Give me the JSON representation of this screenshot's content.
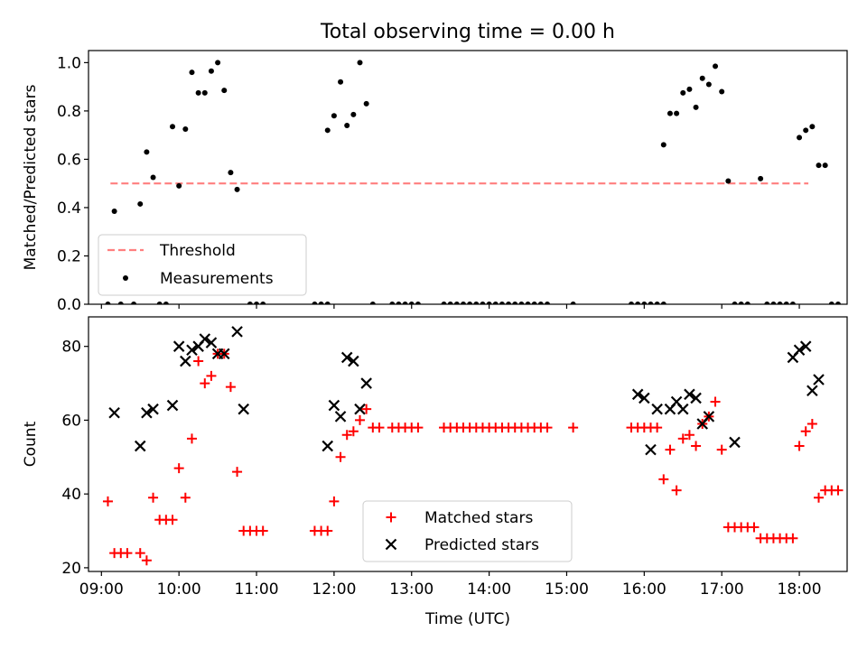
{
  "figure": {
    "title": "Total observing time = 0.00 h"
  },
  "chart_data": [
    {
      "type": "scatter",
      "ylabel": "Matched/Predicted stars",
      "xlim": [
        "08:50",
        "18:37"
      ],
      "ylim": [
        0,
        1.05
      ],
      "x_ticks": [
        "09:00",
        "10:00",
        "11:00",
        "12:00",
        "13:00",
        "14:00",
        "15:00",
        "16:00",
        "17:00",
        "18:00"
      ],
      "y_ticks": [
        "0.0",
        "0.2",
        "0.4",
        "0.6",
        "0.8",
        "1.0"
      ],
      "x_tick_labels_shown": false,
      "legend_position": "lower left",
      "threshold": {
        "name": "Threshold",
        "value": 0.5,
        "x_range": [
          "09:07",
          "18:07"
        ],
        "color": "#ff7f7f",
        "style": "dashed"
      },
      "series": [
        {
          "name": "Measurements",
          "color": "#000000",
          "marker": "dot",
          "points": [
            [
              "09:05",
              0.0
            ],
            [
              "09:10",
              0.385
            ],
            [
              "09:15",
              0.0
            ],
            [
              "09:25",
              0.0
            ],
            [
              "09:30",
              0.415
            ],
            [
              "09:35",
              0.63
            ],
            [
              "09:40",
              0.525
            ],
            [
              "09:45",
              0.0
            ],
            [
              "09:50",
              0.0
            ],
            [
              "09:55",
              0.735
            ],
            [
              "10:00",
              0.49
            ],
            [
              "10:05",
              0.725
            ],
            [
              "10:10",
              0.96
            ],
            [
              "10:15",
              0.875
            ],
            [
              "10:20",
              0.875
            ],
            [
              "10:25",
              0.965
            ],
            [
              "10:30",
              1.0
            ],
            [
              "10:35",
              0.885
            ],
            [
              "10:40",
              0.545
            ],
            [
              "10:45",
              0.475
            ],
            [
              "10:55",
              0.0
            ],
            [
              "11:00",
              0.0
            ],
            [
              "11:05",
              0.0
            ],
            [
              "11:45",
              0.0
            ],
            [
              "11:50",
              0.0
            ],
            [
              "11:55",
              0.0
            ],
            [
              "11:55",
              0.72
            ],
            [
              "12:00",
              0.78
            ],
            [
              "12:05",
              0.92
            ],
            [
              "12:10",
              0.74
            ],
            [
              "12:15",
              0.785
            ],
            [
              "12:20",
              1.0
            ],
            [
              "12:25",
              0.83
            ],
            [
              "12:30",
              0.0
            ],
            [
              "12:45",
              0.0
            ],
            [
              "12:50",
              0.0
            ],
            [
              "12:55",
              0.0
            ],
            [
              "13:00",
              0.0
            ],
            [
              "13:05",
              0.0
            ],
            [
              "13:25",
              0.0
            ],
            [
              "13:30",
              0.0
            ],
            [
              "13:35",
              0.0
            ],
            [
              "13:40",
              0.0
            ],
            [
              "13:45",
              0.0
            ],
            [
              "13:50",
              0.0
            ],
            [
              "13:55",
              0.0
            ],
            [
              "14:00",
              0.0
            ],
            [
              "14:05",
              0.0
            ],
            [
              "14:10",
              0.0
            ],
            [
              "14:15",
              0.0
            ],
            [
              "14:20",
              0.0
            ],
            [
              "14:25",
              0.0
            ],
            [
              "14:30",
              0.0
            ],
            [
              "14:35",
              0.0
            ],
            [
              "14:40",
              0.0
            ],
            [
              "14:45",
              0.0
            ],
            [
              "15:05",
              0.0
            ],
            [
              "15:50",
              0.0
            ],
            [
              "15:55",
              0.0
            ],
            [
              "16:00",
              0.0
            ],
            [
              "16:05",
              0.0
            ],
            [
              "16:10",
              0.0
            ],
            [
              "16:15",
              0.0
            ],
            [
              "16:15",
              0.66
            ],
            [
              "16:20",
              0.79
            ],
            [
              "16:25",
              0.79
            ],
            [
              "16:30",
              0.875
            ],
            [
              "16:35",
              0.89
            ],
            [
              "16:40",
              0.815
            ],
            [
              "16:45",
              0.935
            ],
            [
              "16:50",
              0.91
            ],
            [
              "16:55",
              0.985
            ],
            [
              "17:00",
              0.88
            ],
            [
              "17:05",
              0.51
            ],
            [
              "17:10",
              0.0
            ],
            [
              "17:15",
              0.0
            ],
            [
              "17:20",
              0.0
            ],
            [
              "17:30",
              0.52
            ],
            [
              "17:35",
              0.0
            ],
            [
              "17:40",
              0.0
            ],
            [
              "17:45",
              0.0
            ],
            [
              "17:50",
              0.0
            ],
            [
              "17:55",
              0.0
            ],
            [
              "18:00",
              0.69
            ],
            [
              "18:05",
              0.72
            ],
            [
              "18:10",
              0.735
            ],
            [
              "18:15",
              0.575
            ],
            [
              "18:20",
              0.575
            ],
            [
              "18:25",
              0.0
            ],
            [
              "18:30",
              0.0
            ]
          ]
        }
      ]
    },
    {
      "type": "scatter",
      "xlabel": "Time (UTC)",
      "ylabel": "Count",
      "xlim": [
        "08:50",
        "18:37"
      ],
      "ylim": [
        19,
        88
      ],
      "x_ticks": [
        "09:00",
        "10:00",
        "11:00",
        "12:00",
        "13:00",
        "14:00",
        "15:00",
        "16:00",
        "17:00",
        "18:00"
      ],
      "y_ticks": [
        "20",
        "40",
        "60",
        "80"
      ],
      "legend_position": "lower center",
      "series": [
        {
          "name": "Matched stars",
          "color": "#ff0000",
          "marker": "plus",
          "points": [
            [
              "09:05",
              38
            ],
            [
              "09:10",
              24
            ],
            [
              "09:15",
              24
            ],
            [
              "09:20",
              24
            ],
            [
              "09:30",
              24
            ],
            [
              "09:35",
              22
            ],
            [
              "09:40",
              39
            ],
            [
              "09:45",
              33
            ],
            [
              "09:50",
              33
            ],
            [
              "09:55",
              33
            ],
            [
              "10:00",
              47
            ],
            [
              "10:05",
              39
            ],
            [
              "10:10",
              55
            ],
            [
              "10:15",
              76
            ],
            [
              "10:20",
              70
            ],
            [
              "10:25",
              72
            ],
            [
              "10:30",
              78
            ],
            [
              "10:35",
              78
            ],
            [
              "10:40",
              69
            ],
            [
              "10:45",
              46
            ],
            [
              "10:50",
              30
            ],
            [
              "10:55",
              30
            ],
            [
              "11:00",
              30
            ],
            [
              "11:05",
              30
            ],
            [
              "11:45",
              30
            ],
            [
              "11:50",
              30
            ],
            [
              "11:55",
              30
            ],
            [
              "12:00",
              38
            ],
            [
              "12:05",
              50
            ],
            [
              "12:10",
              56
            ],
            [
              "12:15",
              57
            ],
            [
              "12:20",
              60
            ],
            [
              "12:25",
              63
            ],
            [
              "12:30",
              58
            ],
            [
              "12:35",
              58
            ],
            [
              "12:45",
              58
            ],
            [
              "12:50",
              58
            ],
            [
              "12:55",
              58
            ],
            [
              "13:00",
              58
            ],
            [
              "13:05",
              58
            ],
            [
              "13:25",
              58
            ],
            [
              "13:30",
              58
            ],
            [
              "13:35",
              58
            ],
            [
              "13:40",
              58
            ],
            [
              "13:45",
              58
            ],
            [
              "13:50",
              58
            ],
            [
              "13:55",
              58
            ],
            [
              "14:00",
              58
            ],
            [
              "14:05",
              58
            ],
            [
              "14:10",
              58
            ],
            [
              "14:15",
              58
            ],
            [
              "14:20",
              58
            ],
            [
              "14:25",
              58
            ],
            [
              "14:30",
              58
            ],
            [
              "14:35",
              58
            ],
            [
              "14:40",
              58
            ],
            [
              "14:45",
              58
            ],
            [
              "15:05",
              58
            ],
            [
              "15:50",
              58
            ],
            [
              "15:55",
              58
            ],
            [
              "16:00",
              58
            ],
            [
              "16:05",
              58
            ],
            [
              "16:10",
              58
            ],
            [
              "16:15",
              44
            ],
            [
              "16:20",
              52
            ],
            [
              "16:25",
              41
            ],
            [
              "16:30",
              55
            ],
            [
              "16:35",
              56
            ],
            [
              "16:40",
              53
            ],
            [
              "16:45",
              59
            ],
            [
              "16:50",
              61
            ],
            [
              "16:55",
              65
            ],
            [
              "17:00",
              52
            ],
            [
              "17:05",
              31
            ],
            [
              "17:10",
              31
            ],
            [
              "17:15",
              31
            ],
            [
              "17:20",
              31
            ],
            [
              "17:25",
              31
            ],
            [
              "17:30",
              28
            ],
            [
              "17:35",
              28
            ],
            [
              "17:40",
              28
            ],
            [
              "17:45",
              28
            ],
            [
              "17:50",
              28
            ],
            [
              "17:55",
              28
            ],
            [
              "18:00",
              53
            ],
            [
              "18:05",
              57
            ],
            [
              "18:10",
              59
            ],
            [
              "18:15",
              39
            ],
            [
              "18:20",
              41
            ],
            [
              "18:25",
              41
            ],
            [
              "18:30",
              41
            ]
          ]
        },
        {
          "name": "Predicted stars",
          "color": "#000000",
          "marker": "x",
          "points": [
            [
              "09:10",
              62
            ],
            [
              "09:30",
              53
            ],
            [
              "09:35",
              62
            ],
            [
              "09:40",
              63
            ],
            [
              "09:55",
              64
            ],
            [
              "10:00",
              80
            ],
            [
              "10:05",
              76
            ],
            [
              "10:10",
              79
            ],
            [
              "10:15",
              80
            ],
            [
              "10:20",
              82
            ],
            [
              "10:25",
              81
            ],
            [
              "10:30",
              78
            ],
            [
              "10:35",
              78
            ],
            [
              "10:45",
              84
            ],
            [
              "10:50",
              63
            ],
            [
              "11:55",
              53
            ],
            [
              "12:00",
              64
            ],
            [
              "12:05",
              61
            ],
            [
              "12:10",
              77
            ],
            [
              "12:15",
              76
            ],
            [
              "12:20",
              63
            ],
            [
              "12:25",
              70
            ],
            [
              "15:55",
              67
            ],
            [
              "16:00",
              66
            ],
            [
              "16:05",
              52
            ],
            [
              "16:10",
              63
            ],
            [
              "16:20",
              63
            ],
            [
              "16:25",
              65
            ],
            [
              "16:30",
              63
            ],
            [
              "16:35",
              67
            ],
            [
              "16:40",
              66
            ],
            [
              "16:45",
              59
            ],
            [
              "16:50",
              61
            ],
            [
              "17:10",
              54
            ],
            [
              "17:55",
              77
            ],
            [
              "18:00",
              79
            ],
            [
              "18:05",
              80
            ],
            [
              "18:10",
              68
            ],
            [
              "18:15",
              71
            ]
          ]
        }
      ]
    }
  ]
}
